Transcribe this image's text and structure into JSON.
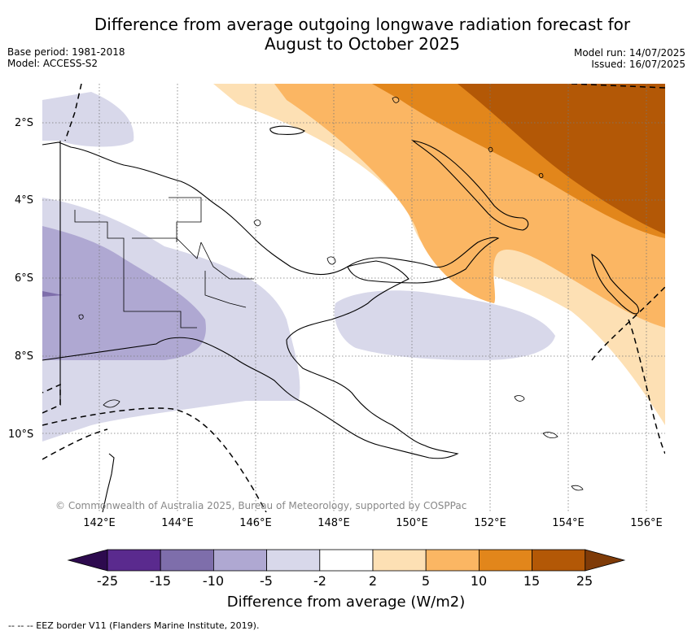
{
  "title": "Difference from average outgoing longwave radiation forecast for",
  "title_line2": "August to October 2025",
  "meta_left": {
    "base_period": "Base period: 1981-2018",
    "model": "Model: ACCESS-S2"
  },
  "meta_right": {
    "model_run": "Model run: 14/07/2025",
    "issued": "Issued: 16/07/2025"
  },
  "map": {
    "lat_labels": [
      "2°S",
      "4°S",
      "6°S",
      "8°S",
      "10°S"
    ],
    "lon_labels": [
      "142°E",
      "144°E",
      "146°E",
      "148°E",
      "150°E",
      "152°E",
      "154°E",
      "156°E"
    ],
    "copyright": "© Commonwealth of Australia 2025, Bureau of Meteorology, supported by COSPPac"
  },
  "colorbar": {
    "ticks": [
      "-25",
      "-15",
      "-10",
      "-5",
      "-2",
      "2",
      "5",
      "10",
      "15",
      "25"
    ],
    "colors": [
      "#2d0a4e",
      "#5a2a8e",
      "#7e6eab",
      "#afa8d2",
      "#d8d8ea",
      "#ffffff",
      "#fde0b4",
      "#fbb663",
      "#e2861b",
      "#b35806",
      "#7f3b08"
    ],
    "label": "Difference from average (W/m2)"
  },
  "footnote": "-- -- -- EEZ border V11 (Flanders Marine Institute, 2019)."
}
